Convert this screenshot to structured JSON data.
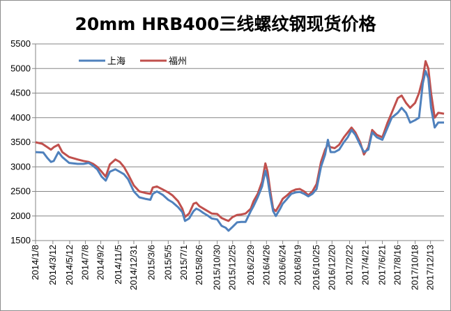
{
  "chart_data": {
    "type": "line",
    "title": "20mm HRB400三线螺纹钢现货价格",
    "xlabel": "",
    "ylabel": "",
    "ylim": [
      1500,
      5500
    ],
    "yticks": [
      1500,
      2000,
      2500,
      3000,
      3500,
      4000,
      4500,
      5000,
      5500
    ],
    "x_tick_labels": [
      "2014/1/8",
      "2014/3/12",
      "2014/5/12",
      "2014/7/8",
      "2014/9/2",
      "2014/11/5",
      "2014/12/31",
      "2015/3/6",
      "2015/5/5",
      "2015/7/1",
      "2015/8/26",
      "2015/10/30",
      "2015/12/25",
      "2016/2/29",
      "2016/4/26",
      "2016/6/24",
      "2016/8/19",
      "2016/10/25",
      "2016/12/20",
      "2017/2/22",
      "2017/4/21",
      "2017/6/21",
      "2017/8/16",
      "2017/10/18",
      "2017/12/13"
    ],
    "x_start": "2014/1/8",
    "x_end": "2018/1/31",
    "grid": "horizontal",
    "legend_position": "top-left",
    "series": [
      {
        "name": "上海",
        "color": "#4f81bd",
        "points": [
          [
            "2014/1/8",
            3300
          ],
          [
            "2014/2/5",
            3290
          ],
          [
            "2014/2/20",
            3180
          ],
          [
            "2014/3/5",
            3100
          ],
          [
            "2014/3/15",
            3120
          ],
          [
            "2014/4/1",
            3300
          ],
          [
            "2014/4/15",
            3200
          ],
          [
            "2014/5/10",
            3080
          ],
          [
            "2014/6/10",
            3060
          ],
          [
            "2014/7/1",
            3060
          ],
          [
            "2014/7/20",
            3080
          ],
          [
            "2014/8/5",
            3020
          ],
          [
            "2014/8/20",
            2950
          ],
          [
            "2014/9/5",
            2800
          ],
          [
            "2014/9/20",
            2720
          ],
          [
            "2014/10/5",
            2900
          ],
          [
            "2014/10/25",
            2950
          ],
          [
            "2014/11/10",
            2900
          ],
          [
            "2014/11/25",
            2850
          ],
          [
            "2014/12/10",
            2750
          ],
          [
            "2014/12/31",
            2500
          ],
          [
            "2015/1/20",
            2380
          ],
          [
            "2015/2/10",
            2350
          ],
          [
            "2015/3/1",
            2330
          ],
          [
            "2015/3/10",
            2450
          ],
          [
            "2015/3/25",
            2500
          ],
          [
            "2015/4/15",
            2430
          ],
          [
            "2015/5/5",
            2330
          ],
          [
            "2015/5/20",
            2280
          ],
          [
            "2015/6/10",
            2180
          ],
          [
            "2015/6/25",
            2080
          ],
          [
            "2015/7/5",
            1900
          ],
          [
            "2015/7/20",
            1950
          ],
          [
            "2015/8/5",
            2100
          ],
          [
            "2015/8/15",
            2150
          ],
          [
            "2015/8/26",
            2120
          ],
          [
            "2015/9/10",
            2060
          ],
          [
            "2015/9/25",
            2010
          ],
          [
            "2015/10/10",
            1950
          ],
          [
            "2015/10/30",
            1930
          ],
          [
            "2015/11/15",
            1800
          ],
          [
            "2015/11/30",
            1760
          ],
          [
            "2015/12/10",
            1700
          ],
          [
            "2015/12/25",
            1780
          ],
          [
            "2016/1/10",
            1870
          ],
          [
            "2016/1/25",
            1880
          ],
          [
            "2016/2/10",
            1880
          ],
          [
            "2016/2/29",
            2100
          ],
          [
            "2016/3/10",
            2200
          ],
          [
            "2016/3/25",
            2380
          ],
          [
            "2016/4/10",
            2600
          ],
          [
            "2016/4/22",
            2920
          ],
          [
            "2016/4/30",
            2750
          ],
          [
            "2016/5/10",
            2400
          ],
          [
            "2016/5/20",
            2100
          ],
          [
            "2016/5/30",
            2000
          ],
          [
            "2016/6/15",
            2150
          ],
          [
            "2016/6/24",
            2250
          ],
          [
            "2016/7/10",
            2350
          ],
          [
            "2016/7/25",
            2450
          ],
          [
            "2016/8/10",
            2480
          ],
          [
            "2016/8/25",
            2490
          ],
          [
            "2016/9/10",
            2450
          ],
          [
            "2016/9/25",
            2400
          ],
          [
            "2016/10/10",
            2450
          ],
          [
            "2016/10/25",
            2550
          ],
          [
            "2016/11/10",
            3000
          ],
          [
            "2016/11/25",
            3250
          ],
          [
            "2016/12/5",
            3550
          ],
          [
            "2016/12/15",
            3300
          ],
          [
            "2016/12/30",
            3300
          ],
          [
            "2017/1/15",
            3350
          ],
          [
            "2017/2/1",
            3500
          ],
          [
            "2017/2/15",
            3600
          ],
          [
            "2017/3/1",
            3750
          ],
          [
            "2017/3/15",
            3650
          ],
          [
            "2017/4/1",
            3450
          ],
          [
            "2017/4/15",
            3300
          ],
          [
            "2017/5/1",
            3350
          ],
          [
            "2017/5/15",
            3700
          ],
          [
            "2017/6/1",
            3600
          ],
          [
            "2017/6/21",
            3550
          ],
          [
            "2017/7/10",
            3800
          ],
          [
            "2017/7/25",
            4000
          ],
          [
            "2017/8/16",
            4100
          ],
          [
            "2017/8/30",
            4200
          ],
          [
            "2017/9/15",
            4100
          ],
          [
            "2017/9/30",
            3900
          ],
          [
            "2017/10/18",
            3950
          ],
          [
            "2017/11/1",
            4000
          ],
          [
            "2017/11/15",
            4700
          ],
          [
            "2017/11/25",
            4950
          ],
          [
            "2017/12/5",
            4800
          ],
          [
            "2017/12/15",
            4200
          ],
          [
            "2017/12/28",
            3800
          ],
          [
            "2018/1/10",
            3900
          ],
          [
            "2018/1/31",
            3900
          ]
        ]
      },
      {
        "name": "福州",
        "color": "#c0504d",
        "points": [
          [
            "2014/1/8",
            3500
          ],
          [
            "2014/2/1",
            3470
          ],
          [
            "2014/2/20",
            3400
          ],
          [
            "2014/3/5",
            3350
          ],
          [
            "2014/3/15",
            3400
          ],
          [
            "2014/4/1",
            3450
          ],
          [
            "2014/4/15",
            3300
          ],
          [
            "2014/5/10",
            3200
          ],
          [
            "2014/6/10",
            3150
          ],
          [
            "2014/7/1",
            3120
          ],
          [
            "2014/7/20",
            3100
          ],
          [
            "2014/8/5",
            3060
          ],
          [
            "2014/8/20",
            3000
          ],
          [
            "2014/9/5",
            2900
          ],
          [
            "2014/9/20",
            2800
          ],
          [
            "2014/10/5",
            3050
          ],
          [
            "2014/10/25",
            3150
          ],
          [
            "2014/11/10",
            3100
          ],
          [
            "2014/11/25",
            3000
          ],
          [
            "2014/12/10",
            2850
          ],
          [
            "2014/12/31",
            2620
          ],
          [
            "2015/1/20",
            2500
          ],
          [
            "2015/2/10",
            2470
          ],
          [
            "2015/3/1",
            2450
          ],
          [
            "2015/3/10",
            2580
          ],
          [
            "2015/3/25",
            2600
          ],
          [
            "2015/4/15",
            2540
          ],
          [
            "2015/5/5",
            2480
          ],
          [
            "2015/5/20",
            2420
          ],
          [
            "2015/6/10",
            2300
          ],
          [
            "2015/6/25",
            2150
          ],
          [
            "2015/7/5",
            1980
          ],
          [
            "2015/7/20",
            2050
          ],
          [
            "2015/8/5",
            2250
          ],
          [
            "2015/8/15",
            2270
          ],
          [
            "2015/8/26",
            2200
          ],
          [
            "2015/9/10",
            2150
          ],
          [
            "2015/9/25",
            2100
          ],
          [
            "2015/10/10",
            2050
          ],
          [
            "2015/10/30",
            2040
          ],
          [
            "2015/11/15",
            1960
          ],
          [
            "2015/11/30",
            1920
          ],
          [
            "2015/12/10",
            1900
          ],
          [
            "2015/12/25",
            1980
          ],
          [
            "2016/1/10",
            2020
          ],
          [
            "2016/1/25",
            2030
          ],
          [
            "2016/2/10",
            2050
          ],
          [
            "2016/2/29",
            2150
          ],
          [
            "2016/3/10",
            2300
          ],
          [
            "2016/3/25",
            2450
          ],
          [
            "2016/4/10",
            2700
          ],
          [
            "2016/4/22",
            3070
          ],
          [
            "2016/4/30",
            2900
          ],
          [
            "2016/5/10",
            2500
          ],
          [
            "2016/5/20",
            2150
          ],
          [
            "2016/5/30",
            2100
          ],
          [
            "2016/6/15",
            2250
          ],
          [
            "2016/6/24",
            2350
          ],
          [
            "2016/7/10",
            2420
          ],
          [
            "2016/7/25",
            2500
          ],
          [
            "2016/8/10",
            2540
          ],
          [
            "2016/8/25",
            2550
          ],
          [
            "2016/9/10",
            2500
          ],
          [
            "2016/9/25",
            2420
          ],
          [
            "2016/10/10",
            2500
          ],
          [
            "2016/10/25",
            2650
          ],
          [
            "2016/11/10",
            3100
          ],
          [
            "2016/11/25",
            3350
          ],
          [
            "2016/12/5",
            3450
          ],
          [
            "2016/12/15",
            3400
          ],
          [
            "2016/12/30",
            3380
          ],
          [
            "2017/1/15",
            3450
          ],
          [
            "2017/2/1",
            3600
          ],
          [
            "2017/2/15",
            3700
          ],
          [
            "2017/3/1",
            3800
          ],
          [
            "2017/3/15",
            3700
          ],
          [
            "2017/4/1",
            3500
          ],
          [
            "2017/4/15",
            3250
          ],
          [
            "2017/5/1",
            3400
          ],
          [
            "2017/5/15",
            3750
          ],
          [
            "2017/6/1",
            3650
          ],
          [
            "2017/6/21",
            3600
          ],
          [
            "2017/7/10",
            3900
          ],
          [
            "2017/7/25",
            4100
          ],
          [
            "2017/8/16",
            4400
          ],
          [
            "2017/8/30",
            4450
          ],
          [
            "2017/9/15",
            4300
          ],
          [
            "2017/9/30",
            4200
          ],
          [
            "2017/10/18",
            4300
          ],
          [
            "2017/11/1",
            4500
          ],
          [
            "2017/11/15",
            4800
          ],
          [
            "2017/11/25",
            5150
          ],
          [
            "2017/12/5",
            5000
          ],
          [
            "2017/12/15",
            4500
          ],
          [
            "2017/12/28",
            4000
          ],
          [
            "2018/1/10",
            4100
          ],
          [
            "2018/1/31",
            4080
          ]
        ]
      }
    ]
  }
}
